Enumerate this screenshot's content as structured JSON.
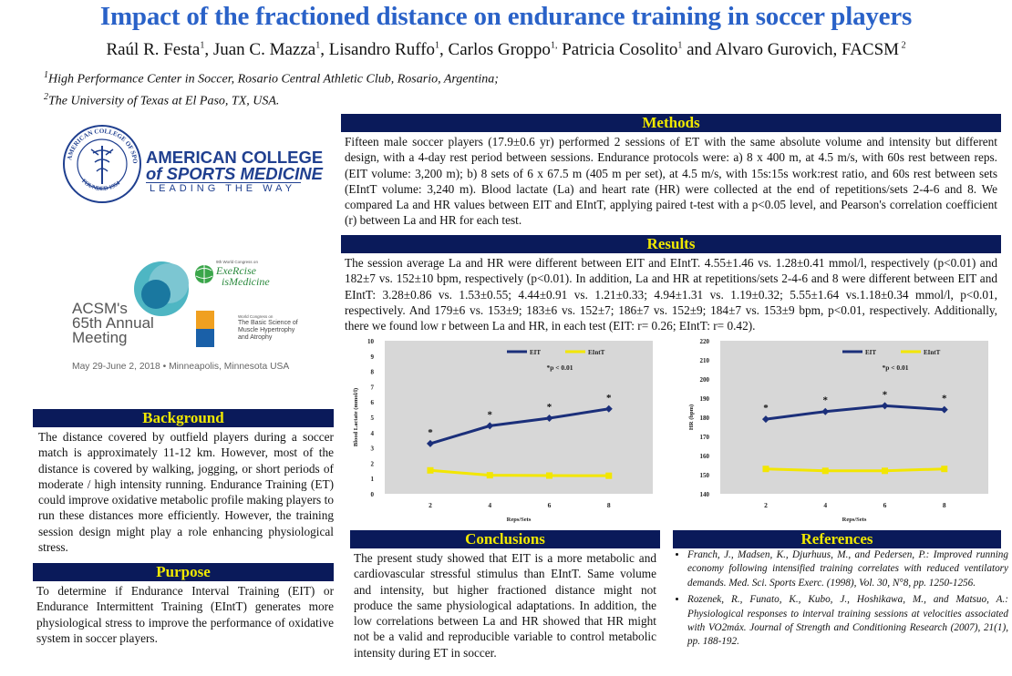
{
  "title": "Impact of the fractioned distance on endurance training in soccer players",
  "authors": [
    {
      "name": "Raúl R. Festa",
      "sup": "1",
      "sep": ", "
    },
    {
      "name": "Juan C. Mazza",
      "sup": "1",
      "sep": ", "
    },
    {
      "name": "Lisandro Ruffo",
      "sup": "1",
      "sep": ", "
    },
    {
      "name": "Carlos Groppo",
      "sup": "1,",
      "sep": " "
    },
    {
      "name": "Patricia Cosolito",
      "sup": "1",
      "sep": " and "
    },
    {
      "name": "Alvaro Gurovich, FACSM",
      "sup": " 2",
      "sep": ""
    }
  ],
  "affiliations": [
    {
      "sup": "1",
      "text": "High Performance Center in Soccer, Rosario Central Athletic Club, Rosario, Argentina;"
    },
    {
      "sup": "2",
      "text": "The University of Texas at El Paso, TX, USA."
    }
  ],
  "logo_acsm": {
    "line1": "AMERICAN COLLEGE",
    "line2": "of SPORTS MEDICINE",
    "tagline": "LEADING THE WAY",
    "seal_text": "AMERICAN COLLEGE OF SPORTS MEDICINE",
    "founded": "FOUNDED 1954",
    "brand_color": "#1f3f8f"
  },
  "logo_meeting": {
    "acsm": "ACSM's",
    "annual": "65th Annual",
    "meeting": "Meeting",
    "dates": "May 29-June 2, 2018 • Minneapolis, Minnesota USA",
    "eim_small": "9th World Congress on",
    "eim_big1": "ExeRcise",
    "eim_big2": "isMedicine",
    "basic_small": "World Congress on",
    "basic_lines": [
      "The Basic Science of",
      "Muscle Hypertrophy",
      "and Atrophy"
    ]
  },
  "sections": {
    "methods": {
      "heading": "Methods",
      "text": "Fifteen male soccer players (17.9±0.6 yr) performed 2 sessions of ET with the same absolute volume and intensity but different design, with a 4-day rest period between sessions. Endurance protocols were: a) 8 x 400 m, at 4.5 m/s, with 60s rest between reps. (EIT volume: 3,200 m); b) 8 sets of 6 x 67.5 m (405 m per set), at 4.5 m/s, with 15s:15s work:rest ratio, and 60s rest between sets (EIntT volume: 3,240 m). Blood lactate (La) and heart rate (HR) were collected at the end of repetitions/sets 2-4-6 and 8. We compared La and HR values between EIT and EIntT, applying paired t-test with a p<0.05 level, and Pearson's correlation coefficient (r) between La and HR for each test."
    },
    "results": {
      "heading": "Results",
      "text": "The session average La and HR were different between EIT and EIntT. 4.55±1.46 vs. 1.28±0.41 mmol/l, respectively (p<0.01) and 182±7 vs. 152±10 bpm, respectively (p<0.01). In addition, La and HR at repetitions/sets 2-4-6 and 8 were different between EIT and EIntT: 3.28±0.86 vs. 1.53±0.55; 4.44±0.91 vs. 1.21±0.33; 4.94±1.31 vs. 1.19±0.32; 5.55±1.64 vs.1.18±0.34 mmol/l, p<0.01, respectively. And 179±6 vs. 153±9; 183±6 vs. 152±7; 186±7 vs. 152±9; 184±7 vs. 153±9 bpm, p<0.01, respectively. Additionally, there we found low r between La and HR, in each test (EIT: r= 0.26; EIntT: r= 0.42)."
    },
    "background": {
      "heading": "Background",
      "text": "The distance covered by outfield players during a soccer match is approximately 11-12 km. However, most of the distance is covered by walking, jogging, or short periods of moderate / high intensity running. Endurance Training (ET) could improve oxidative metabolic profile making players to run these distances more efficiently. However, the training session design might play a role enhancing physiological stress."
    },
    "purpose": {
      "heading": "Purpose",
      "text": "To determine if Endurance Interval Training (EIT) or Endurance Intermittent Training (EIntT) generates more physiological stress to improve the performance of oxidative system in soccer players."
    },
    "conclusions": {
      "heading": "Conclusions",
      "text": "The present study showed that EIT is a more metabolic and cardiovascular stressful stimulus than EIntT. Same volume and intensity, but higher fractioned distance might not produce the same physiological adaptations. In addition, the low correlations between La and HR showed that HR might not be a valid and reproducible variable to control metabolic intensity during ET in soccer."
    },
    "references": {
      "heading": "References",
      "items": [
        "Franch, J., Madsen, K., Djurhuus, M., and Pedersen, P.: Improved running economy following intensified training correlates with reduced ventilatory demands. Med. Sci. Sports Exerc. (1998), Vol. 30, N°8, pp. 1250-1256.",
        "Rozenek, R., Funato, K., Kubo, J., Hoshikawa, M., and Matsuo, A.: Physiological responses to interval training sessions at velocities associated with VO2máx. Journal of Strength and Conditioning Research (2007), 21(1), pp. 188-192."
      ]
    }
  },
  "chart_data": [
    {
      "type": "line",
      "x": [
        2,
        4,
        6,
        8
      ],
      "xlabel": "Reps/Sets",
      "ylabel": "Blood Lactate (mmol/l)",
      "ylim": [
        0,
        10
      ],
      "yticks": [
        0,
        1,
        2,
        3,
        4,
        5,
        6,
        7,
        8,
        9,
        10
      ],
      "series": [
        {
          "name": "EIT",
          "values": [
            3.28,
            4.44,
            4.94,
            5.55
          ],
          "color": "#1b2f7a"
        },
        {
          "name": "EIntT",
          "values": [
            1.53,
            1.21,
            1.19,
            1.18
          ],
          "color": "#f2e600"
        }
      ],
      "annotation": "*p < 0.01",
      "marker_label": "*",
      "legend": "top-right",
      "plot_background": "#d7d7d7"
    },
    {
      "type": "line",
      "x": [
        2,
        4,
        6,
        8
      ],
      "xlabel": "Reps/Sets",
      "ylabel": "HR (bpm)",
      "ylim": [
        140,
        220
      ],
      "yticks": [
        140,
        150,
        160,
        170,
        180,
        190,
        200,
        210,
        220
      ],
      "series": [
        {
          "name": "EIT",
          "values": [
            179,
            183,
            186,
            184
          ],
          "color": "#1b2f7a"
        },
        {
          "name": "EIntT",
          "values": [
            153,
            152,
            152,
            153
          ],
          "color": "#f2e600"
        }
      ],
      "annotation": "*p < 0.01",
      "marker_label": "*",
      "legend": "top-right",
      "plot_background": "#d7d7d7"
    }
  ]
}
